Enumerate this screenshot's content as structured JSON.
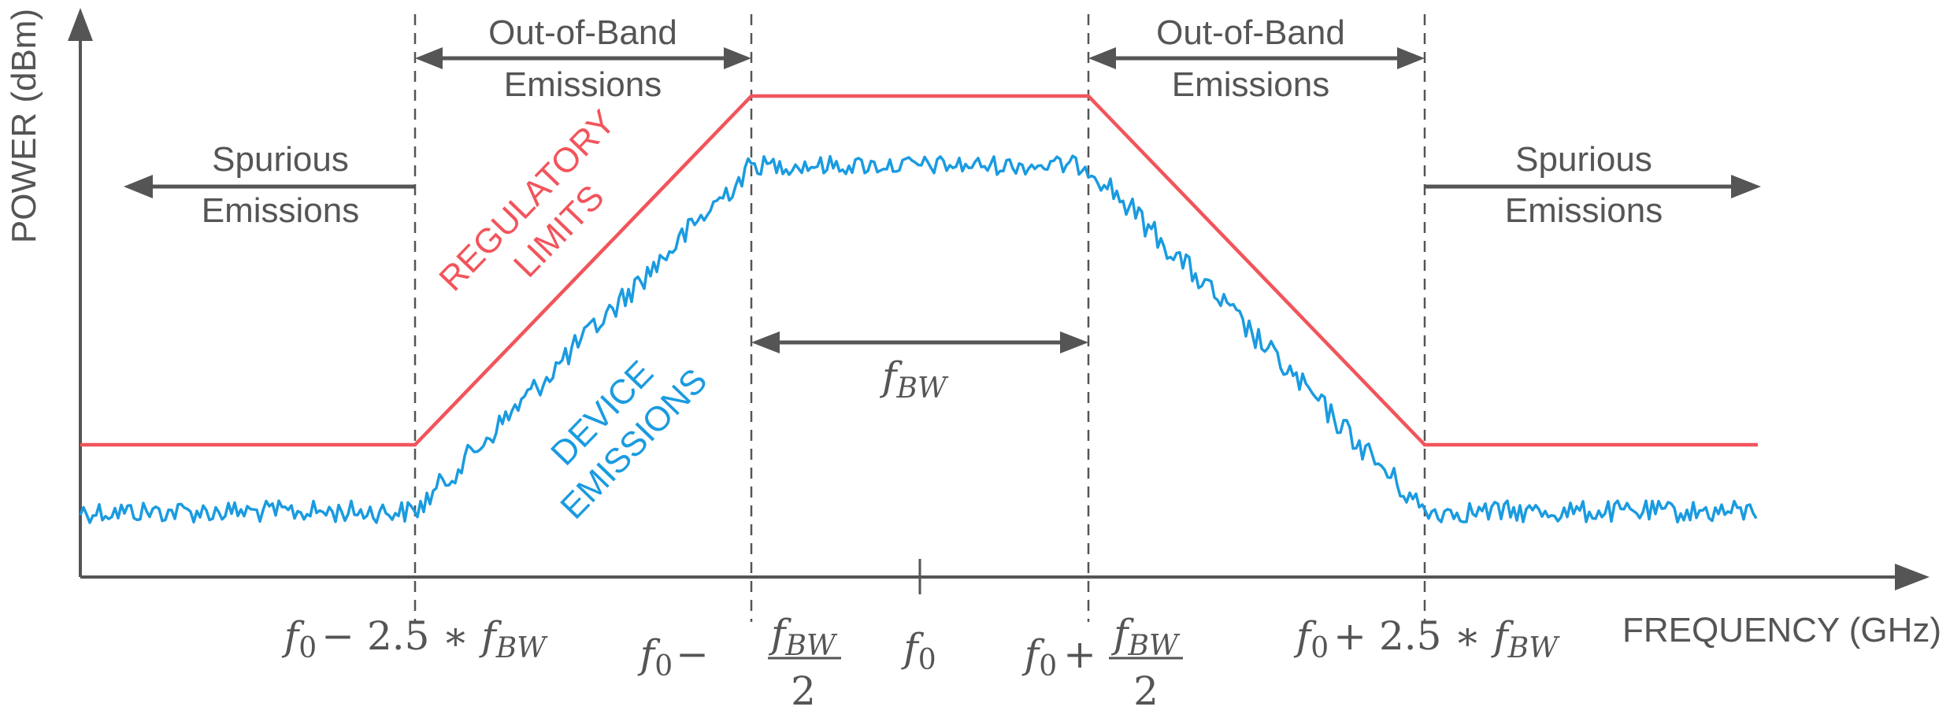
{
  "diagram": {
    "y_axis_label": "POWER (dBm)",
    "x_axis_label": "FREQUENCY (GHz)",
    "regions": {
      "left_out_of_band": {
        "line1": "Out-of-Band",
        "line2": "Emissions"
      },
      "right_out_of_band": {
        "line1": "Out-of-Band",
        "line2": "Emissions"
      },
      "left_spurious": {
        "line1": "Spurious",
        "line2": "Emissions"
      },
      "right_spurious": {
        "line1": "Spurious",
        "line2": "Emissions"
      }
    },
    "curve_labels": {
      "regulatory": {
        "line1": "REGULATORY",
        "line2": "LIMITS"
      },
      "device": {
        "line1": "DEVICE",
        "line2": "EMISSIONS"
      }
    },
    "bandwidth_label": {
      "base": "f",
      "sub": "BW"
    },
    "tick_labels": {
      "f0_minus_2_5": {
        "f": "f",
        "zero": "0",
        "op": "− 2.5 ∗ ",
        "fb": "f",
        "bw": "BW"
      },
      "f0_minus_half": {
        "f": "f",
        "zero": "0",
        "op": "−",
        "num_f": "f",
        "num_bw": "BW",
        "den": "2"
      },
      "f0": {
        "f": "f",
        "zero": "0"
      },
      "f0_plus_half": {
        "f": "f",
        "zero": "0",
        "op": "+",
        "num_f": "f",
        "num_bw": "BW",
        "den": "2"
      },
      "f0_plus_2_5": {
        "f": "f",
        "zero": "0",
        "op": "+ 2.5 ∗ ",
        "fb": "f",
        "bw": "BW"
      }
    },
    "colors": {
      "axis": "#555555",
      "regulatory": "#F2545B",
      "device": "#1A9BE0"
    }
  }
}
